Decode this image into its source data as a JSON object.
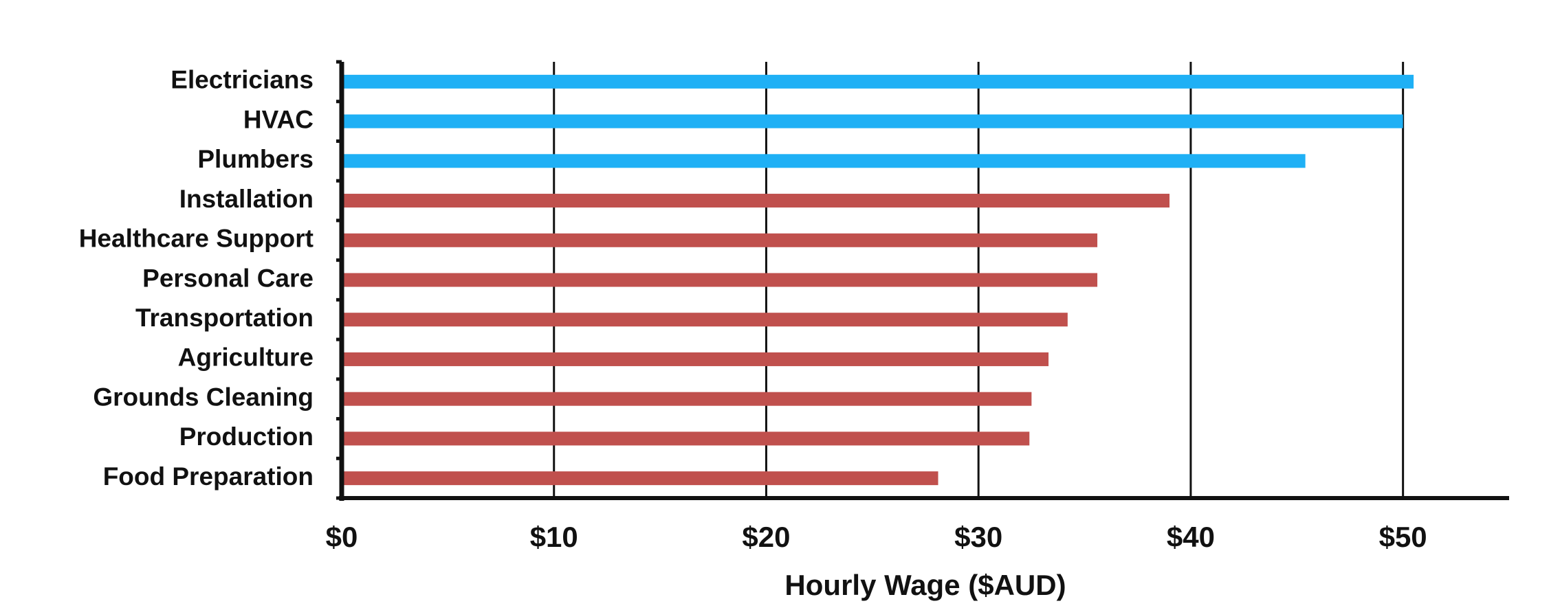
{
  "chart_data": {
    "type": "bar",
    "orientation": "horizontal",
    "x_label": "Hourly Wage ($AUD)",
    "categories": [
      "Electricians",
      "HVAC",
      "Plumbers",
      "Installation",
      "Healthcare Support",
      "Personal Care",
      "Transportation",
      "Agriculture",
      "Grounds Cleaning",
      "Production",
      "Food Preparation"
    ],
    "values": [
      50.5,
      50.0,
      45.4,
      39.0,
      35.6,
      35.6,
      34.2,
      33.3,
      32.5,
      32.4,
      28.1
    ],
    "colors": [
      "#1fb0f5",
      "#1fb0f5",
      "#1fb0f5",
      "#c0504d",
      "#c0504d",
      "#c0504d",
      "#c0504d",
      "#c0504d",
      "#c0504d",
      "#c0504d",
      "#c0504d"
    ],
    "xlim": [
      0,
      55
    ],
    "xticks": [
      {
        "value": 0,
        "label": "$0"
      },
      {
        "value": 10,
        "label": "$10"
      },
      {
        "value": 20,
        "label": "$20"
      },
      {
        "value": 30,
        "label": "$30"
      },
      {
        "value": 40,
        "label": "$40"
      },
      {
        "value": 50,
        "label": "$50"
      }
    ],
    "grid": true
  }
}
